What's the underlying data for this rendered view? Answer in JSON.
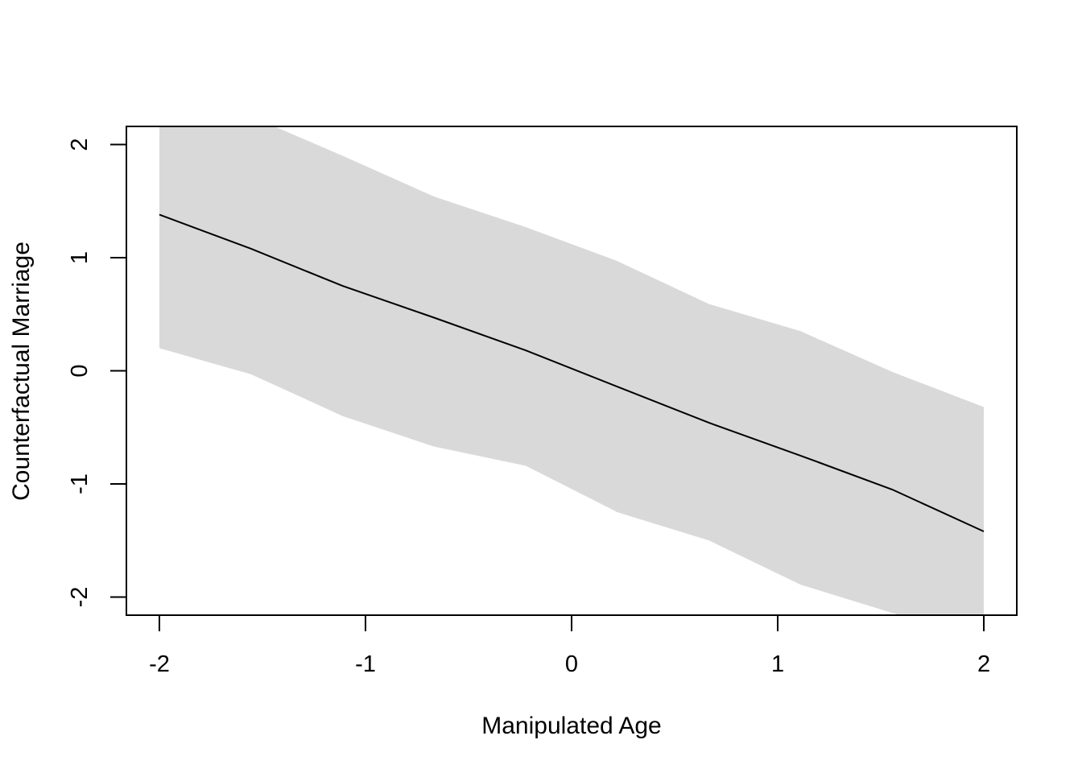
{
  "chart_data": {
    "type": "line",
    "title": "",
    "xlabel": "Manipulated Age",
    "ylabel": "Counterfactual Marriage",
    "xlim": [
      -2.16,
      2.16
    ],
    "ylim": [
      -2.16,
      2.16
    ],
    "x_ticks": [
      -2,
      -1,
      0,
      1,
      2
    ],
    "x_tick_labels": [
      "-2",
      "-1",
      "0",
      "1",
      "2"
    ],
    "y_ticks": [
      -2,
      -1,
      0,
      1,
      2
    ],
    "y_tick_labels": [
      "-2",
      "-1",
      "0",
      "1",
      "2"
    ],
    "grid": false,
    "x": [
      -2.0,
      -1.556,
      -1.111,
      -0.667,
      -0.222,
      0.222,
      0.667,
      1.111,
      1.556,
      2.0
    ],
    "series": [
      {
        "values": [
          1.38,
          1.08,
          0.75,
          0.47,
          0.18,
          -0.14,
          -0.46,
          -0.75,
          -1.05,
          -1.42
        ],
        "color": "#000000"
      }
    ],
    "interval": {
      "upper": [
        2.45,
        2.25,
        1.9,
        1.54,
        1.27,
        0.97,
        0.59,
        0.35,
        -0.01,
        -0.32
      ],
      "lower": [
        0.2,
        -0.03,
        -0.4,
        -0.67,
        -0.84,
        -1.25,
        -1.5,
        -1.89,
        -2.14,
        -2.37
      ],
      "color": "#d9d9d9"
    }
  }
}
